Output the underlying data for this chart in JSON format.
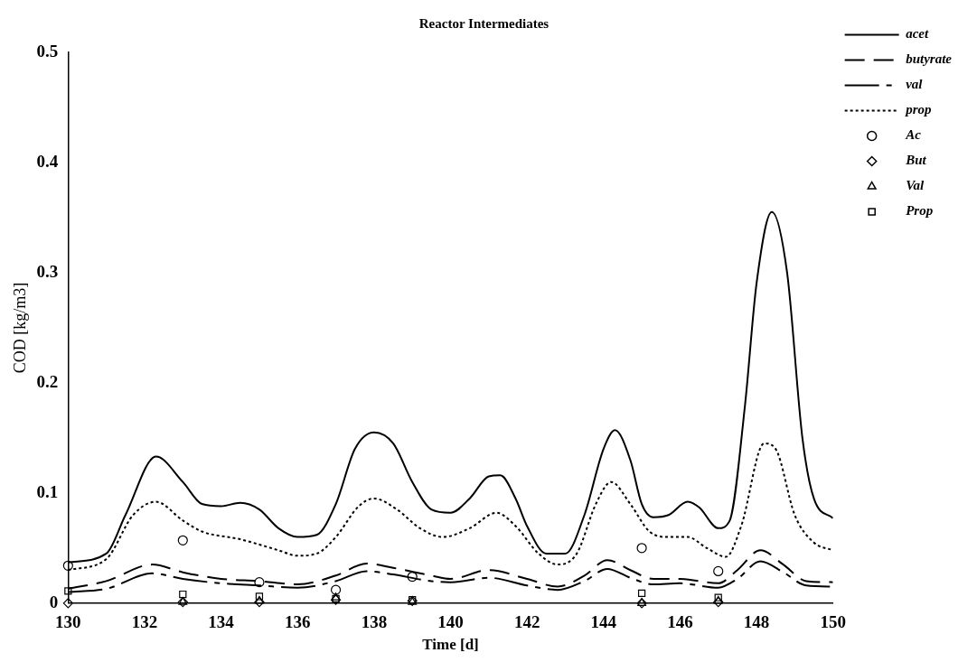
{
  "chart_data": {
    "type": "line",
    "title": "Reactor Intermediates",
    "xlabel": "Time [d]",
    "ylabel": "COD [kg/m3]",
    "xlim": [
      130,
      150
    ],
    "xticks": [
      130,
      132,
      134,
      136,
      138,
      140,
      142,
      144,
      146,
      148,
      150
    ],
    "ylim": [
      0,
      0.5
    ],
    "yticks": [
      0,
      0.1,
      0.2,
      0.3,
      0.4,
      0.5
    ],
    "grid": false,
    "legend": "top right",
    "series": [
      {
        "name": "acet",
        "type": "line",
        "color": "#000000",
        "line_style": "solid",
        "marker": "none",
        "x": [
          130,
          131,
          131.5,
          132.3,
          133,
          133.5,
          134,
          134.5,
          135,
          135.5,
          136,
          136.5,
          137,
          137.5,
          138,
          138.5,
          139,
          139.5,
          140,
          140.5,
          141,
          141.3,
          141.7,
          142,
          142.5,
          143,
          143.5,
          144,
          144.3,
          144.7,
          145,
          145.3,
          145.7,
          146.2,
          146.5,
          147,
          147.3,
          147.7,
          148,
          148.4,
          148.8,
          149.2,
          149.5,
          150
        ],
        "values": [
          0.037,
          0.045,
          0.08,
          0.133,
          0.11,
          0.09,
          0.088,
          0.091,
          0.085,
          0.068,
          0.06,
          0.062,
          0.09,
          0.14,
          0.155,
          0.145,
          0.11,
          0.085,
          0.082,
          0.095,
          0.115,
          0.116,
          0.095,
          0.07,
          0.045,
          0.045,
          0.08,
          0.14,
          0.157,
          0.13,
          0.09,
          0.078,
          0.08,
          0.092,
          0.087,
          0.068,
          0.075,
          0.18,
          0.29,
          0.355,
          0.3,
          0.15,
          0.095,
          0.077
        ]
      },
      {
        "name": "butyrate",
        "color": "#000000",
        "line_style": "dashed",
        "marker": "none",
        "x": [
          130,
          131,
          132.2,
          133,
          134,
          135,
          136,
          137,
          137.8,
          138.5,
          139.5,
          140,
          141,
          142,
          142.8,
          143.5,
          144.1,
          144.7,
          145.3,
          146,
          147,
          147.5,
          148.1,
          148.7,
          149.3,
          150
        ],
        "values": [
          0.013,
          0.02,
          0.035,
          0.028,
          0.022,
          0.02,
          0.017,
          0.025,
          0.036,
          0.032,
          0.025,
          0.022,
          0.03,
          0.022,
          0.015,
          0.025,
          0.039,
          0.03,
          0.022,
          0.022,
          0.018,
          0.03,
          0.048,
          0.035,
          0.02,
          0.019
        ]
      },
      {
        "name": "val",
        "color": "#000000",
        "line_style": "dashed",
        "marker": "none",
        "x": [
          130,
          131,
          132.2,
          133,
          134,
          135,
          136,
          137,
          137.8,
          138.5,
          139.5,
          140,
          141,
          142,
          142.8,
          143.5,
          144.1,
          144.7,
          145.3,
          146,
          147,
          147.5,
          148.1,
          148.7,
          149.3,
          150
        ],
        "values": [
          0.01,
          0.013,
          0.027,
          0.022,
          0.018,
          0.016,
          0.014,
          0.02,
          0.029,
          0.026,
          0.02,
          0.019,
          0.023,
          0.016,
          0.012,
          0.02,
          0.031,
          0.023,
          0.017,
          0.018,
          0.014,
          0.022,
          0.038,
          0.028,
          0.016,
          0.015
        ]
      },
      {
        "name": "prop",
        "color": "#000000",
        "line_style": "dotted",
        "marker": "none",
        "x": [
          130,
          131,
          131.7,
          132.3,
          133,
          133.5,
          134.5,
          135.5,
          136,
          136.5,
          137,
          137.6,
          138,
          138.6,
          139.2,
          139.8,
          140.5,
          141.2,
          141.7,
          142.3,
          142.8,
          143.3,
          143.8,
          144.2,
          144.7,
          145.2,
          145.7,
          146.2,
          146.7,
          147.2,
          147.6,
          148.2,
          148.5,
          149,
          149.5,
          150
        ],
        "values": [
          0.03,
          0.04,
          0.08,
          0.092,
          0.075,
          0.065,
          0.058,
          0.048,
          0.043,
          0.045,
          0.06,
          0.088,
          0.095,
          0.085,
          0.068,
          0.06,
          0.068,
          0.082,
          0.07,
          0.045,
          0.035,
          0.045,
          0.09,
          0.11,
          0.09,
          0.065,
          0.06,
          0.06,
          0.05,
          0.042,
          0.07,
          0.145,
          0.14,
          0.08,
          0.055,
          0.048
        ]
      },
      {
        "name": "Ac",
        "type": "scatter",
        "color": "#000000",
        "marker": "circle",
        "x": [
          130,
          133,
          135,
          137,
          139,
          145,
          147
        ],
        "values": [
          0.034,
          0.057,
          0.019,
          0.012,
          0.024,
          0.05,
          0.029
        ]
      },
      {
        "name": "But",
        "type": "scatter",
        "color": "#000000",
        "marker": "diamond",
        "x": [
          130,
          133,
          135,
          137,
          139,
          145,
          147
        ],
        "values": [
          0,
          0.001,
          0.001,
          0.003,
          0.002,
          0,
          0.001
        ]
      },
      {
        "name": "Val",
        "type": "scatter",
        "color": "#000000",
        "marker": "triangle",
        "x": [
          133,
          135,
          137,
          139,
          145,
          147
        ],
        "values": [
          0.001,
          0.002,
          0.005,
          0.001,
          0,
          0.002
        ]
      },
      {
        "name": "Prop",
        "type": "scatter",
        "color": "#000000",
        "marker": "square",
        "x": [
          130,
          133,
          135,
          137,
          139,
          145,
          147
        ],
        "values": [
          0.011,
          0.008,
          0.006,
          0.004,
          0.003,
          0.009,
          0.005
        ]
      }
    ]
  }
}
